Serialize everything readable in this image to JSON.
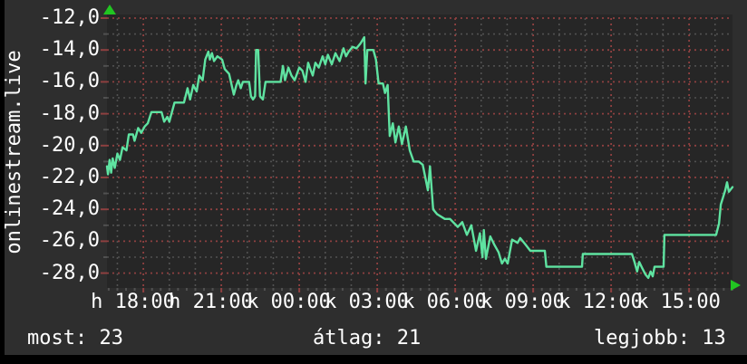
{
  "title_vertical": "onlinestream.live",
  "legend": {
    "most_label": "most: 23",
    "atlag_label": "átlag: 21",
    "legjobb_label": "legjobb: 13"
  },
  "colors": {
    "background": "#000000",
    "panel": "#2e2e2e",
    "plot_bg": "#262626",
    "text": "#ffffff",
    "line": "#5fe3a1",
    "grid_major": "#8e4040",
    "grid_minor": "#515151",
    "arrow": "#21c521"
  },
  "chart_data": {
    "type": "line",
    "title": "onlinestream.live",
    "legend_position": "bottom",
    "grid": "on",
    "stats": {
      "most": 23,
      "atlag": 21,
      "legjobb": 13
    },
    "y_axis": {
      "ylim": [
        -29,
        -12
      ],
      "minor_step": 1,
      "major_ticks": [
        {
          "v": -12,
          "label": "-12,0"
        },
        {
          "v": -14,
          "label": "-14,0"
        },
        {
          "v": -16,
          "label": "-16,0"
        },
        {
          "v": -18,
          "label": "-18,0"
        },
        {
          "v": -20,
          "label": "-20,0"
        },
        {
          "v": -22,
          "label": "-22,0"
        },
        {
          "v": -24,
          "label": "-24,0"
        },
        {
          "v": -26,
          "label": "-26,0"
        },
        {
          "v": -28,
          "label": "-28,0"
        }
      ]
    },
    "x_axis": {
      "span_hours": [
        16.6,
        40.67
      ],
      "minor_step_hours": 1,
      "tick_step_hours": 0.3333,
      "major_ticks": [
        {
          "t": 18,
          "label": "h 18:00"
        },
        {
          "t": 21,
          "label": "h 21:00"
        },
        {
          "t": 24,
          "label": "k 00:00"
        },
        {
          "t": 27,
          "label": "k 03:00"
        },
        {
          "t": 30,
          "label": "k 06:00"
        },
        {
          "t": 33,
          "label": "k 09:00"
        },
        {
          "t": 36,
          "label": "k 12:00"
        },
        {
          "t": 39,
          "label": "k 15:00"
        }
      ]
    },
    "series": [
      {
        "name": "onlinestream.live",
        "points": [
          [
            16.6,
            -21.3
          ],
          [
            16.64,
            -21.8
          ],
          [
            16.7,
            -20.9
          ],
          [
            16.76,
            -21.7
          ],
          [
            16.82,
            -20.8
          ],
          [
            16.9,
            -21.4
          ],
          [
            17.0,
            -20.5
          ],
          [
            17.1,
            -20.9
          ],
          [
            17.2,
            -20.1
          ],
          [
            17.35,
            -20.3
          ],
          [
            17.44,
            -19.3
          ],
          [
            17.6,
            -19.3
          ],
          [
            17.66,
            -19.7
          ],
          [
            17.8,
            -18.9
          ],
          [
            17.92,
            -19.2
          ],
          [
            18.05,
            -18.8
          ],
          [
            18.17,
            -18.6
          ],
          [
            18.31,
            -17.9
          ],
          [
            18.7,
            -17.9
          ],
          [
            18.8,
            -18.5
          ],
          [
            18.92,
            -18.2
          ],
          [
            19.0,
            -18.5
          ],
          [
            19.2,
            -17.3
          ],
          [
            19.56,
            -17.3
          ],
          [
            19.7,
            -16.4
          ],
          [
            19.8,
            -17.1
          ],
          [
            19.92,
            -16.2
          ],
          [
            20.05,
            -16.6
          ],
          [
            20.15,
            -15.6
          ],
          [
            20.28,
            -15.9
          ],
          [
            20.38,
            -14.6
          ],
          [
            20.5,
            -14.1
          ],
          [
            20.56,
            -14.6
          ],
          [
            20.64,
            -14.2
          ],
          [
            20.72,
            -14.7
          ],
          [
            20.85,
            -14.4
          ],
          [
            21.03,
            -14.6
          ],
          [
            21.13,
            -15.2
          ],
          [
            21.3,
            -15.5
          ],
          [
            21.48,
            -16.8
          ],
          [
            21.58,
            -16.2
          ],
          [
            21.65,
            -15.9
          ],
          [
            21.75,
            -16.4
          ],
          [
            21.83,
            -16.0
          ],
          [
            22.07,
            -16.0
          ],
          [
            22.14,
            -16.9
          ],
          [
            22.22,
            -17.1
          ],
          [
            22.3,
            -16.9
          ],
          [
            22.34,
            -14.0
          ],
          [
            22.42,
            -14.0
          ],
          [
            22.49,
            -16.9
          ],
          [
            22.6,
            -17.1
          ],
          [
            22.7,
            -16.0
          ],
          [
            23.28,
            -16.0
          ],
          [
            23.37,
            -15.0
          ],
          [
            23.45,
            -15.9
          ],
          [
            23.58,
            -15.1
          ],
          [
            23.7,
            -15.6
          ],
          [
            23.82,
            -15.9
          ],
          [
            24.0,
            -15.1
          ],
          [
            24.12,
            -15.3
          ],
          [
            24.24,
            -16.0
          ],
          [
            24.34,
            -14.8
          ],
          [
            24.45,
            -15.3
          ],
          [
            24.52,
            -15.6
          ],
          [
            24.62,
            -14.8
          ],
          [
            24.75,
            -15.1
          ],
          [
            24.9,
            -14.4
          ],
          [
            25.0,
            -14.9
          ],
          [
            25.1,
            -14.3
          ],
          [
            25.25,
            -14.9
          ],
          [
            25.39,
            -14.2
          ],
          [
            25.55,
            -14.7
          ],
          [
            25.7,
            -13.9
          ],
          [
            25.8,
            -14.4
          ],
          [
            25.9,
            -14.1
          ],
          [
            26.05,
            -13.8
          ],
          [
            26.2,
            -13.9
          ],
          [
            26.35,
            -13.6
          ],
          [
            26.5,
            -13.2
          ],
          [
            26.55,
            -16.1
          ],
          [
            26.62,
            -14.0
          ],
          [
            26.85,
            -14.0
          ],
          [
            26.95,
            -14.6
          ],
          [
            27.05,
            -16.1
          ],
          [
            27.22,
            -16.1
          ],
          [
            27.3,
            -16.7
          ],
          [
            27.4,
            -16.2
          ],
          [
            27.48,
            -19.4
          ],
          [
            27.6,
            -18.6
          ],
          [
            27.7,
            -19.8
          ],
          [
            27.83,
            -18.8
          ],
          [
            27.95,
            -19.9
          ],
          [
            28.1,
            -18.8
          ],
          [
            28.25,
            -20.3
          ],
          [
            28.4,
            -21.0
          ],
          [
            28.6,
            -21.0
          ],
          [
            28.75,
            -21.2
          ],
          [
            28.95,
            -22.8
          ],
          [
            29.03,
            -21.3
          ],
          [
            29.15,
            -24.0
          ],
          [
            29.3,
            -24.3
          ],
          [
            29.6,
            -24.6
          ],
          [
            29.8,
            -24.6
          ],
          [
            30.1,
            -25.1
          ],
          [
            30.27,
            -24.8
          ],
          [
            30.45,
            -25.6
          ],
          [
            30.62,
            -25.0
          ],
          [
            30.8,
            -26.6
          ],
          [
            30.95,
            -25.5
          ],
          [
            31.05,
            -27.0
          ],
          [
            31.1,
            -25.3
          ],
          [
            31.18,
            -27.1
          ],
          [
            31.35,
            -25.7
          ],
          [
            31.5,
            -26.2
          ],
          [
            31.67,
            -26.7
          ],
          [
            31.8,
            -27.4
          ],
          [
            31.91,
            -27.1
          ],
          [
            32.02,
            -27.4
          ],
          [
            32.19,
            -25.9
          ],
          [
            32.4,
            -26.1
          ],
          [
            32.5,
            -25.8
          ],
          [
            32.7,
            -26.2
          ],
          [
            32.89,
            -26.6
          ],
          [
            33.45,
            -26.6
          ],
          [
            33.51,
            -27.6
          ],
          [
            34.88,
            -27.6
          ],
          [
            34.91,
            -26.8
          ],
          [
            36.8,
            -26.8
          ],
          [
            36.9,
            -27.3
          ],
          [
            37.0,
            -27.9
          ],
          [
            37.08,
            -27.3
          ],
          [
            37.2,
            -27.7
          ],
          [
            37.33,
            -28.1
          ],
          [
            37.43,
            -28.3
          ],
          [
            37.52,
            -27.9
          ],
          [
            37.6,
            -28.2
          ],
          [
            37.67,
            -27.6
          ],
          [
            38.02,
            -27.6
          ],
          [
            38.05,
            -25.6
          ],
          [
            40.04,
            -25.6
          ],
          [
            40.15,
            -24.9
          ],
          [
            40.22,
            -23.7
          ],
          [
            40.39,
            -22.8
          ],
          [
            40.46,
            -22.3
          ],
          [
            40.53,
            -22.9
          ],
          [
            40.67,
            -22.6
          ]
        ]
      }
    ]
  }
}
